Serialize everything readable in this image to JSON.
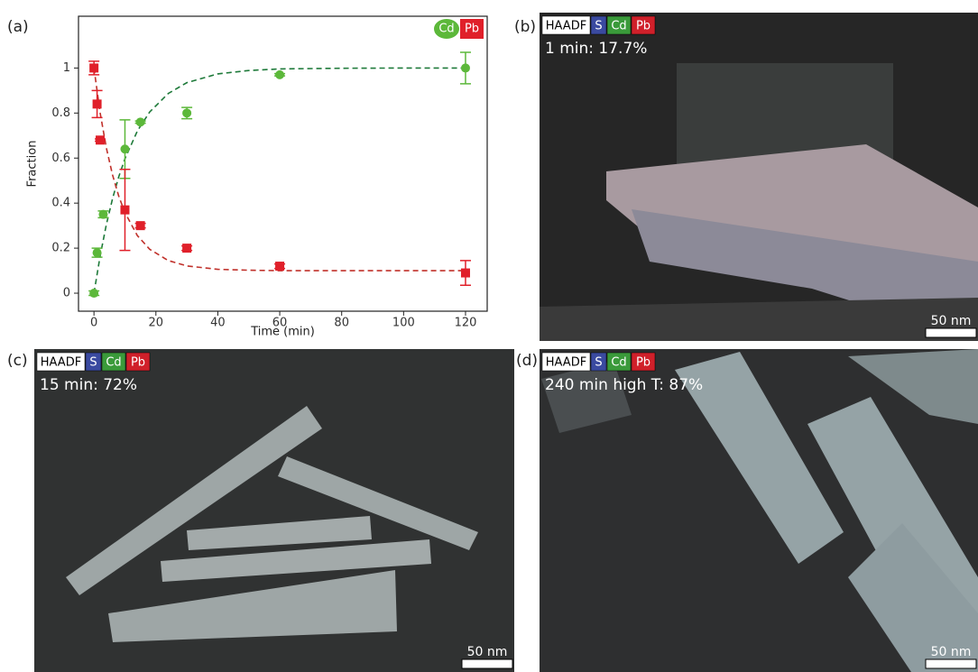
{
  "chart_data": {
    "type": "scatter",
    "panel_label": "(a)",
    "xlabel": "Time (min)",
    "ylabel": "Fraction",
    "xlim": [
      -5,
      127
    ],
    "xticks": [
      0,
      20,
      40,
      60,
      80,
      100,
      120
    ],
    "ylim": [
      -0.08,
      1.23
    ],
    "yticks": [
      0,
      0.2,
      0.4,
      0.6,
      0.8,
      1
    ],
    "series": [
      {
        "name": "Cd",
        "color": "#5cb83a",
        "marker": "circle",
        "x": [
          0,
          1,
          3,
          10,
          15,
          30,
          60,
          120
        ],
        "values": [
          0,
          0.18,
          0.35,
          0.64,
          0.76,
          0.8,
          0.97,
          1.0
        ],
        "errors": [
          0.01,
          0.02,
          0.015,
          0.13,
          0.005,
          0.025,
          0.005,
          0.07
        ]
      },
      {
        "name": "Pb",
        "color": "#e0202a",
        "marker": "square",
        "x": [
          0,
          1,
          2,
          10,
          15,
          30,
          60,
          120
        ],
        "values": [
          1.0,
          0.84,
          0.68,
          0.37,
          0.3,
          0.2,
          0.12,
          0.09
        ],
        "errors": [
          0.03,
          0.06,
          0.005,
          0.18,
          0.01,
          0.01,
          0.01,
          0.055
        ]
      }
    ],
    "fits": [
      {
        "color": "#1e7a3a",
        "x": [
          0,
          2,
          4,
          6,
          8,
          10,
          14,
          18,
          24,
          30,
          40,
          50,
          60,
          80,
          100,
          120
        ],
        "y": [
          0,
          0.166,
          0.305,
          0.42,
          0.517,
          0.597,
          0.72,
          0.805,
          0.887,
          0.935,
          0.974,
          0.989,
          0.996,
          0.999,
          1.0,
          1.0
        ]
      },
      {
        "color": "#c0302a",
        "x": [
          0,
          2,
          4,
          6,
          8,
          10,
          14,
          18,
          24,
          30,
          40,
          50,
          60,
          80,
          100,
          120
        ],
        "y": [
          1.0,
          0.8,
          0.645,
          0.525,
          0.431,
          0.358,
          0.256,
          0.195,
          0.145,
          0.121,
          0.106,
          0.102,
          0.1,
          0.1,
          0.1,
          0.1
        ]
      }
    ]
  },
  "panels": [
    {
      "label": "(b)",
      "caption": "1 min: 17.7%",
      "scale_bar": "50 nm",
      "tags": [
        {
          "text": "HAADF",
          "color": "#ffffff"
        },
        {
          "text": "S",
          "color": "#3a4aa0"
        },
        {
          "text": "Cd",
          "color": "#3a9a3a"
        },
        {
          "text": "Pb",
          "color": "#d0202a"
        }
      ]
    },
    {
      "label": "(c)",
      "caption": "15 min: 72%",
      "scale_bar": "50 nm",
      "tags": [
        {
          "text": "HAADF",
          "color": "#ffffff"
        },
        {
          "text": "S",
          "color": "#3a4aa0"
        },
        {
          "text": "Cd",
          "color": "#3a9a3a"
        },
        {
          "text": "Pb",
          "color": "#d0202a"
        }
      ]
    },
    {
      "label": "(d)",
      "caption": "240 min high T: 87%",
      "scale_bar": "50 nm",
      "tags": [
        {
          "text": "HAADF",
          "color": "#ffffff"
        },
        {
          "text": "S",
          "color": "#3a4aa0"
        },
        {
          "text": "Cd",
          "color": "#3a9a3a"
        },
        {
          "text": "Pb",
          "color": "#d0202a"
        }
      ]
    }
  ]
}
